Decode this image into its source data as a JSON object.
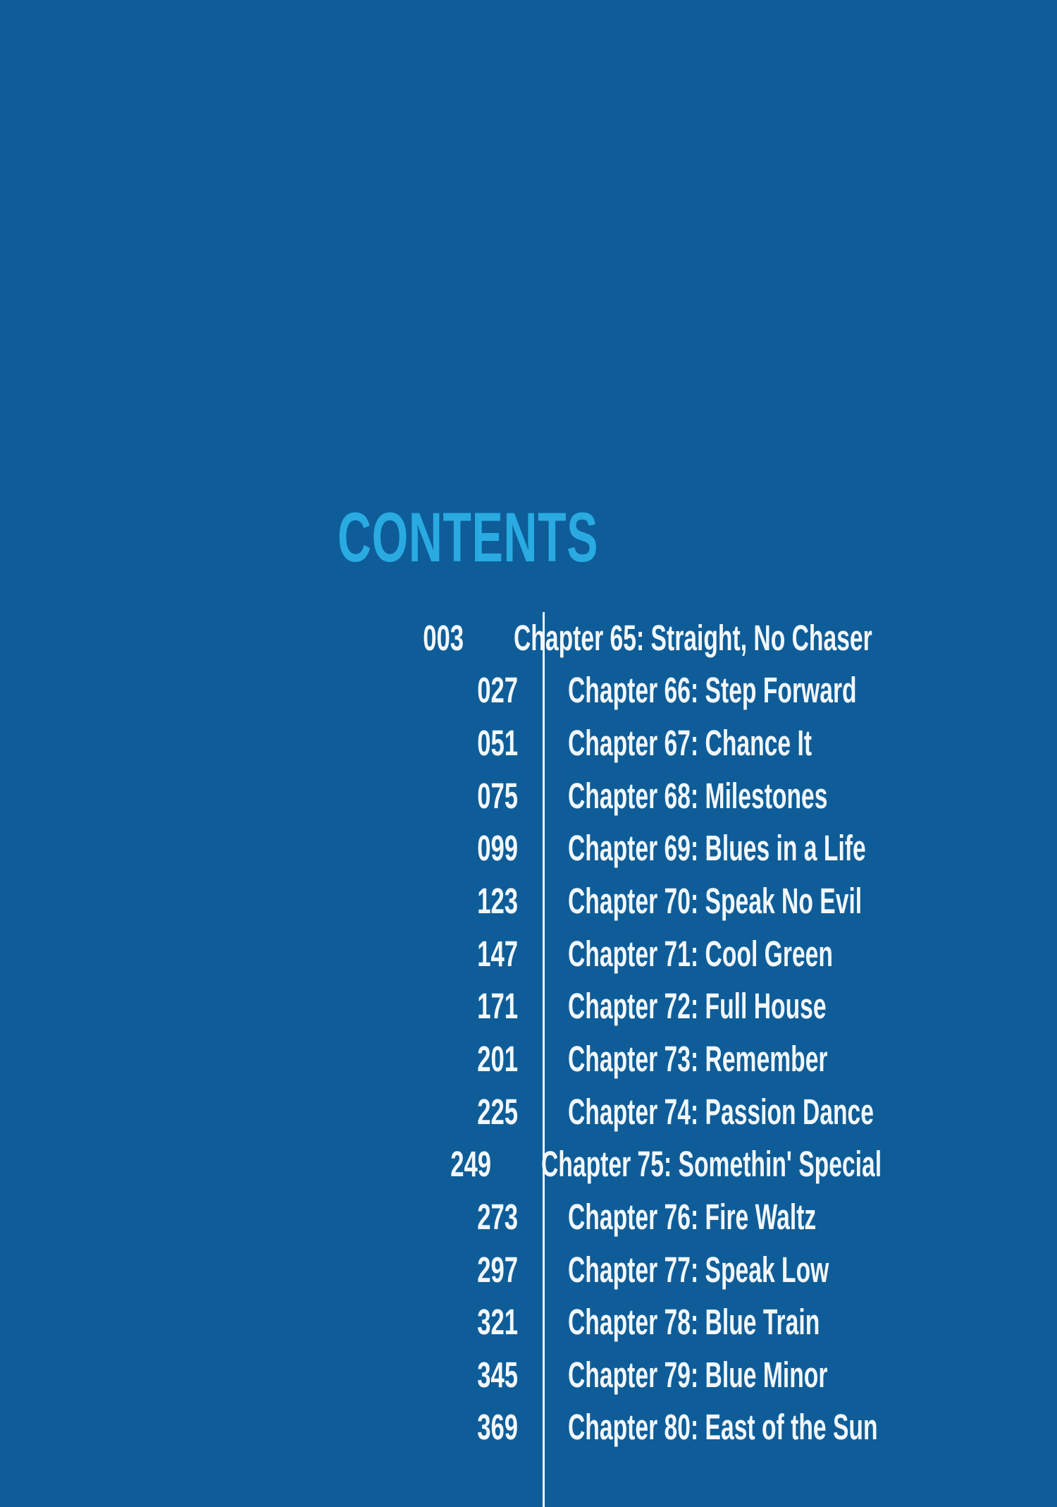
{
  "page": {
    "title": "CONTENTS",
    "colors": {
      "background": "#0e5d98",
      "title_accent": "#29abe2",
      "text": "#f2f7fa",
      "divider": "#f2f7fa"
    }
  },
  "toc": {
    "entries": [
      {
        "page": "003",
        "label": "Chapter 65: Straight, No Chaser"
      },
      {
        "page": "027",
        "label": "Chapter 66: Step Forward"
      },
      {
        "page": "051",
        "label": "Chapter 67: Chance It"
      },
      {
        "page": "075",
        "label": "Chapter 68: Milestones"
      },
      {
        "page": "099",
        "label": "Chapter 69: Blues in a Life"
      },
      {
        "page": "123",
        "label": "Chapter 70: Speak No Evil"
      },
      {
        "page": "147",
        "label": "Chapter 71: Cool Green"
      },
      {
        "page": "171",
        "label": "Chapter 72: Full House"
      },
      {
        "page": "201",
        "label": "Chapter 73: Remember"
      },
      {
        "page": "225",
        "label": "Chapter 74: Passion Dance"
      },
      {
        "page": "249",
        "label": "Chapter 75: Somethin' Special"
      },
      {
        "page": "273",
        "label": "Chapter 76: Fire Waltz"
      },
      {
        "page": "297",
        "label": "Chapter 77: Speak Low"
      },
      {
        "page": "321",
        "label": "Chapter 78: Blue Train"
      },
      {
        "page": "345",
        "label": "Chapter 79: Blue Minor"
      },
      {
        "page": "369",
        "label": "Chapter 80: East of the Sun"
      }
    ]
  }
}
